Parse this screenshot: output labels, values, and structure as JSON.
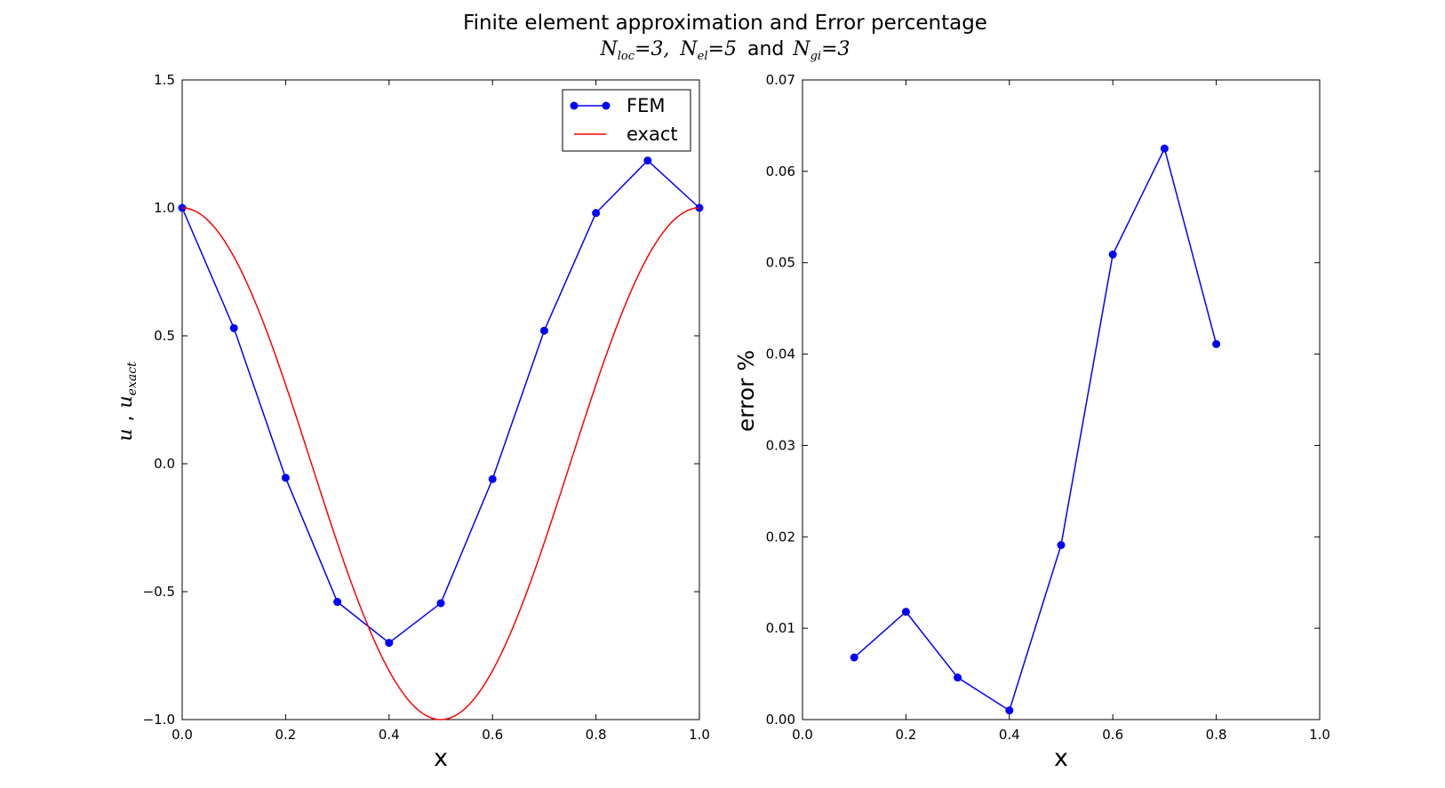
{
  "figure": {
    "title_line1": "Finite element approximation and Error percentage",
    "title_line2": {
      "nloc_base": "N",
      "nloc_sub": "loc",
      "nloc_val": "=3,",
      "nel_base": "N",
      "nel_sub": "el",
      "nel_val": "=5",
      "and_text": "and",
      "ngi_base": "N",
      "ngi_sub": "gi",
      "ngi_val": "=3"
    }
  },
  "chart_data": [
    {
      "type": "line",
      "xlabel": "x",
      "ylabel_parts": {
        "u": "u",
        "sep": ",",
        "u2": "u",
        "sub": "exact"
      },
      "xlim": [
        0.0,
        1.0
      ],
      "ylim": [
        -1.0,
        1.5
      ],
      "xticks": [
        "0.0",
        "0.2",
        "0.4",
        "0.6",
        "0.8",
        "1.0"
      ],
      "xtick_values": [
        0.0,
        0.2,
        0.4,
        0.6,
        0.8,
        1.0
      ],
      "yticks": [
        "−1.0",
        "−0.5",
        "0.0",
        "0.5",
        "1.0",
        "1.5"
      ],
      "ytick_values": [
        -1.0,
        -0.5,
        0.0,
        0.5,
        1.0,
        1.5
      ],
      "grid": false,
      "legend_position": "top-right",
      "series": [
        {
          "name": "FEM",
          "color": "#0000ff",
          "marker": "circle",
          "x": [
            0.0,
            0.1,
            0.2,
            0.3,
            0.4,
            0.5,
            0.6,
            0.7,
            0.8,
            0.9,
            1.0
          ],
          "y": [
            1.0,
            0.53,
            -0.055,
            -0.54,
            -0.7,
            -0.545,
            -0.06,
            0.52,
            0.98,
            1.185,
            1.0
          ]
        },
        {
          "name": "exact",
          "color": "#ff0000",
          "marker": "none",
          "function": "cos(2*pi*x)",
          "x_range": [
            0.0,
            1.0
          ]
        }
      ]
    },
    {
      "type": "line",
      "xlabel": "x",
      "ylabel": "error %",
      "xlim": [
        0.0,
        1.0
      ],
      "ylim": [
        0.0,
        0.07
      ],
      "xticks": [
        "0.0",
        "0.2",
        "0.4",
        "0.6",
        "0.8",
        "1.0"
      ],
      "xtick_values": [
        0.0,
        0.2,
        0.4,
        0.6,
        0.8,
        1.0
      ],
      "yticks": [
        "0.00",
        "0.01",
        "0.02",
        "0.03",
        "0.04",
        "0.05",
        "0.06",
        "0.07"
      ],
      "ytick_values": [
        0.0,
        0.01,
        0.02,
        0.03,
        0.04,
        0.05,
        0.06,
        0.07
      ],
      "grid": false,
      "series": [
        {
          "color": "#0000ff",
          "marker": "circle",
          "x": [
            0.1,
            0.2,
            0.3,
            0.4,
            0.5,
            0.6,
            0.7,
            0.8
          ],
          "y": [
            0.0068,
            0.0118,
            0.0046,
            0.001,
            0.0191,
            0.0509,
            0.0625,
            0.0411
          ]
        }
      ]
    }
  ]
}
